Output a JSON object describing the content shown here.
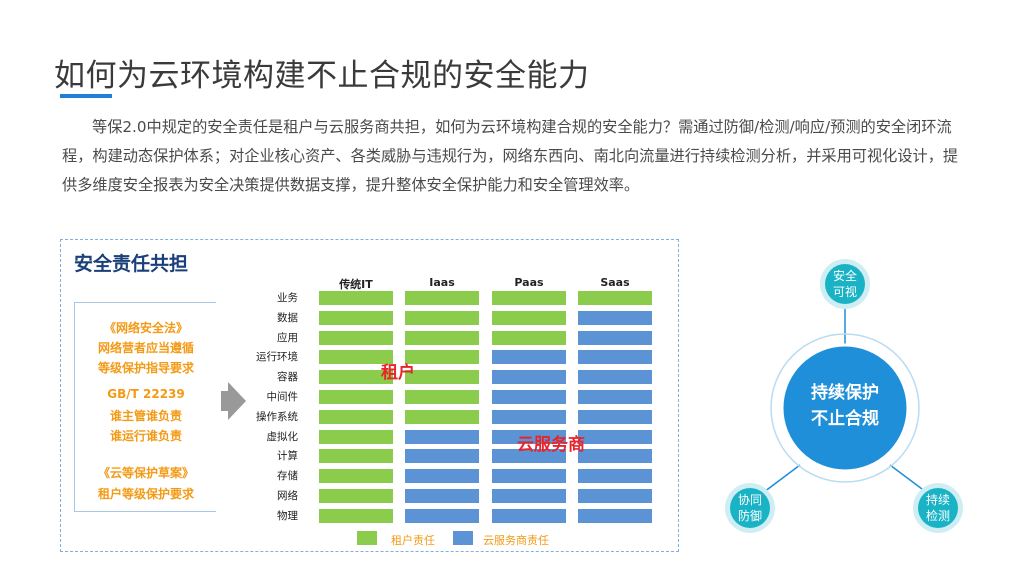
{
  "title": "如何为云环境构建不止合规的安全能力",
  "intro": "等保2.0中规定的安全责任是租户与云服务商共担，如何为云环境构建合规的安全能力？需通过防御/检测/响应/预测的安全闭环流程，构建动态保护体系；对企业核心资产、各类威胁与违规行为，网络东西向、南北向流量进行持续检测分析，并采用可视化设计，提供多维度安全报表为安全决策提供数据支撑，提升整体安全保护能力和安全管理效率。",
  "panel": {
    "title": "安全责任共担",
    "laws": [
      "《网络安全法》",
      "网络营者应当遵循",
      "等级保护指导要求",
      "GB/T 22239",
      "谁主管谁负责",
      "谁运行谁负责",
      "《云等保护草案》",
      "租户等级保护要求"
    ],
    "columns": [
      "传统IT",
      "Iaas",
      "Paas",
      "Saas"
    ],
    "rows": [
      "业务",
      "数据",
      "应用",
      "运行环境",
      "容器",
      "中间件",
      "操作系统",
      "虚拟化",
      "计算",
      "存储",
      "网络",
      "物理"
    ],
    "tenant_rows_by_column": [
      12,
      7,
      3,
      1
    ],
    "tenant_label": "租户",
    "provider_label": "云服务商",
    "legend": {
      "tenant": "租户责任",
      "provider": "云服务商责任"
    },
    "colors": {
      "tenant": "#8ccc4d",
      "provider": "#5b93d4"
    }
  },
  "diagram": {
    "hub": [
      "持续保护",
      "不止合规"
    ],
    "satellites": {
      "top": [
        "安全",
        "可视"
      ],
      "left": [
        "协同",
        "防御"
      ],
      "right": [
        "持续",
        "检测"
      ]
    },
    "colors": {
      "hub": "#1e8fd8",
      "satellite": "#1ab3c6"
    }
  }
}
